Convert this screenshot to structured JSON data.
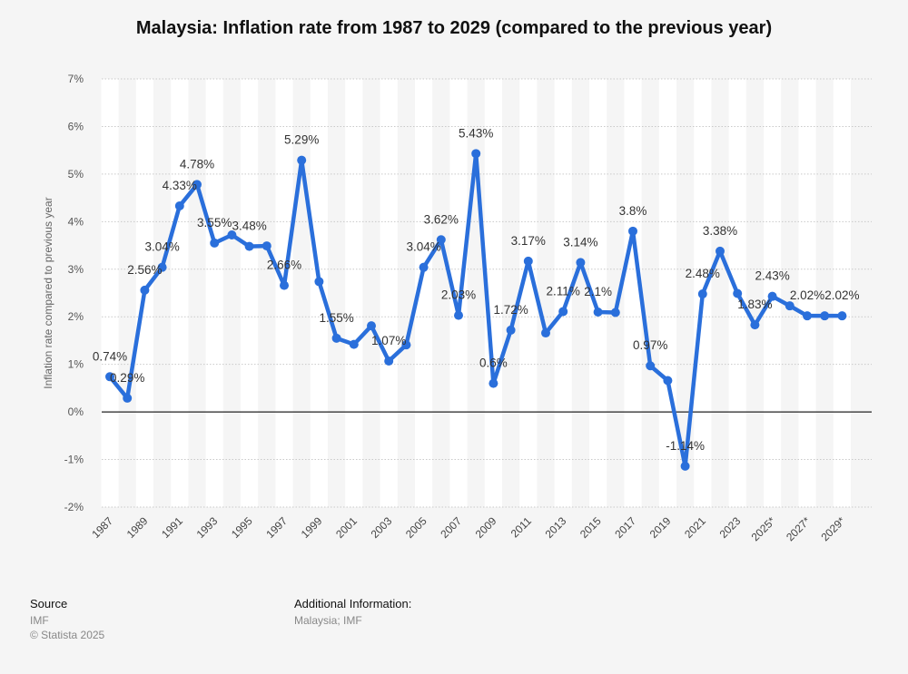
{
  "title": "Malaysia: Inflation rate from 1987 to 2029 (compared to the previous year)",
  "footer": {
    "source_label": "Source",
    "source_value": "IMF",
    "copyright": "© Statista 2025",
    "additional_label": "Additional Information:",
    "additional_value": "Malaysia; IMF"
  },
  "colors": {
    "line": "#2a6fdb",
    "zero_line": "#222222",
    "band": "#ffffff",
    "background": "#f5f5f5"
  },
  "chart_data": {
    "type": "line",
    "title": "Malaysia: Inflation rate from 1987 to 2029 (compared to the previous year)",
    "ylabel": "Inflation rate compared to previous year",
    "xlabel": "",
    "ylim": [
      -2,
      7
    ],
    "yticks": [
      -2,
      -1,
      0,
      1,
      2,
      3,
      4,
      5,
      6,
      7
    ],
    "ytick_labels": [
      "-2%",
      "-1%",
      "0%",
      "1%",
      "2%",
      "3%",
      "4%",
      "5%",
      "6%",
      "7%"
    ],
    "grid": true,
    "x": [
      "1987",
      "1988",
      "1989",
      "1990",
      "1991",
      "1992",
      "1993",
      "1994",
      "1995",
      "1996",
      "1997",
      "1998",
      "1999",
      "2000",
      "2001",
      "2002",
      "2003",
      "2004",
      "2005",
      "2006",
      "2007",
      "2008",
      "2009",
      "2010",
      "2011",
      "2012",
      "2013",
      "2014",
      "2015",
      "2016",
      "2017",
      "2018",
      "2019",
      "2020",
      "2021",
      "2022",
      "2023",
      "2024",
      "2025*",
      "2026*",
      "2027*",
      "2028*",
      "2029*"
    ],
    "xtick_labels": [
      "1987",
      "1989",
      "1991",
      "1993",
      "1995",
      "1997",
      "1999",
      "2001",
      "2003",
      "2005",
      "2007",
      "2009",
      "2011",
      "2013",
      "2015",
      "2017",
      "2019",
      "2021",
      "2023",
      "2025*",
      "2027*",
      "2029*"
    ],
    "series": [
      {
        "values": [
          0.74,
          0.29,
          2.56,
          3.04,
          4.33,
          4.78,
          3.55,
          3.72,
          3.48,
          3.49,
          2.66,
          5.29,
          2.74,
          1.55,
          1.42,
          1.81,
          1.07,
          1.41,
          3.04,
          3.62,
          2.03,
          5.43,
          0.6,
          1.72,
          3.17,
          1.66,
          2.11,
          3.14,
          2.1,
          2.09,
          3.8,
          0.97,
          0.66,
          -1.14,
          2.48,
          3.38,
          2.49,
          1.83,
          2.43,
          2.23,
          2.02,
          2.02,
          2.02
        ]
      }
    ],
    "annotations": [
      {
        "index": 0,
        "text": "0.74%"
      },
      {
        "index": 1,
        "text": "0.29%"
      },
      {
        "index": 2,
        "text": "2.56%"
      },
      {
        "index": 3,
        "text": "3.04%"
      },
      {
        "index": 4,
        "text": "4.33%"
      },
      {
        "index": 5,
        "text": "4.78%"
      },
      {
        "index": 6,
        "text": "3.55%"
      },
      {
        "index": 8,
        "text": "3.48%"
      },
      {
        "index": 10,
        "text": "2.66%"
      },
      {
        "index": 11,
        "text": "5.29%"
      },
      {
        "index": 13,
        "text": "1.55%"
      },
      {
        "index": 16,
        "text": "1.07%"
      },
      {
        "index": 18,
        "text": "3.04%"
      },
      {
        "index": 19,
        "text": "3.62%"
      },
      {
        "index": 20,
        "text": "2.03%"
      },
      {
        "index": 21,
        "text": "5.43%"
      },
      {
        "index": 22,
        "text": "0.6%"
      },
      {
        "index": 23,
        "text": "1.72%"
      },
      {
        "index": 24,
        "text": "3.17%"
      },
      {
        "index": 26,
        "text": "2.11%"
      },
      {
        "index": 27,
        "text": "3.14%"
      },
      {
        "index": 28,
        "text": "2.1%"
      },
      {
        "index": 30,
        "text": "3.8%"
      },
      {
        "index": 31,
        "text": "0.97%"
      },
      {
        "index": 33,
        "text": "-1.14%"
      },
      {
        "index": 34,
        "text": "2.48%"
      },
      {
        "index": 35,
        "text": "3.38%"
      },
      {
        "index": 37,
        "text": "1.83%"
      },
      {
        "index": 38,
        "text": "2.43%"
      },
      {
        "index": 40,
        "text": "2.02%"
      },
      {
        "index": 42,
        "text": "2.02%"
      }
    ]
  }
}
